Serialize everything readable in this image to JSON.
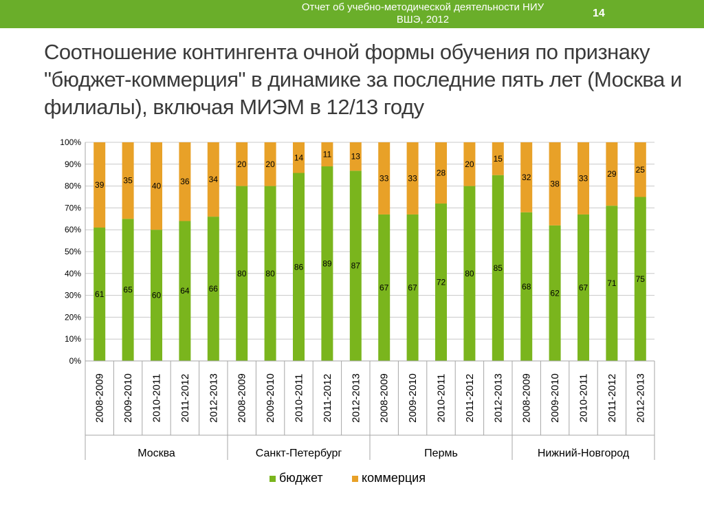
{
  "header": {
    "line1": "Отчет об учебно-методической деятельности НИУ",
    "line2": "ВШЭ, 2012",
    "page_number": "14",
    "bar_color": "#6aae2a"
  },
  "slide": {
    "title": "Соотношение контингента  очной формы обучения по признаку \"бюджет-коммерция\" в динамике за последние пять лет (Москва и филиалы), включая МИЭМ в 12/13 году"
  },
  "chart_data": {
    "type": "bar",
    "stacked": true,
    "y_tick_labels": [
      "0%",
      "10%",
      "20%",
      "30%",
      "40%",
      "50%",
      "60%",
      "70%",
      "80%",
      "90%",
      "100%"
    ],
    "ylim": [
      0,
      100
    ],
    "categories": [
      "2008-2009",
      "2009-2010",
      "2010-2011",
      "2011-2012",
      "2012-2013",
      "2008-2009",
      "2009-2010",
      "2010-2011",
      "2011-2012",
      "2012-2013",
      "2008-2009",
      "2009-2010",
      "2010-2011",
      "2011-2012",
      "2012-2013",
      "2008-2009",
      "2009-2010",
      "2010-2011",
      "2011-2012",
      "2012-2013"
    ],
    "groups": [
      {
        "name": "Москва",
        "size": 5
      },
      {
        "name": "Санкт-Петербург",
        "size": 5
      },
      {
        "name": "Пермь",
        "size": 5
      },
      {
        "name": "Нижний-Новгород",
        "size": 5
      }
    ],
    "series": [
      {
        "name": "бюджет",
        "color": "#7ab51d",
        "values": [
          61,
          65,
          60,
          64,
          66,
          80,
          80,
          86,
          89,
          87,
          67,
          67,
          72,
          80,
          85,
          68,
          62,
          67,
          71,
          75
        ]
      },
      {
        "name": "коммерция",
        "color": "#e8a128",
        "values": [
          39,
          35,
          40,
          36,
          34,
          20,
          20,
          14,
          11,
          13,
          33,
          33,
          28,
          20,
          15,
          32,
          38,
          33,
          29,
          25
        ]
      }
    ],
    "legend_position": "bottom",
    "grid": true
  }
}
